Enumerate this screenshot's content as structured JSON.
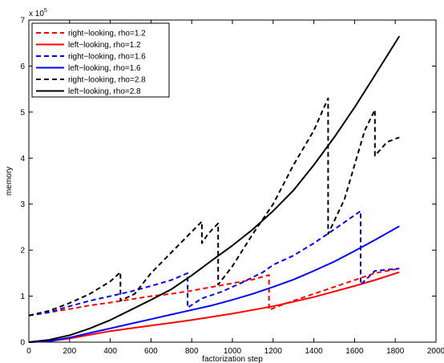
{
  "chart_data": {
    "type": "line",
    "title": "",
    "xlabel": "factorization step",
    "ylabel": "memory",
    "y_multiplier_label": "x 10",
    "y_multiplier_exponent": "5",
    "xlim": [
      0,
      2000
    ],
    "ylim": [
      0,
      7
    ],
    "xticks": [
      0,
      200,
      400,
      600,
      800,
      1000,
      1200,
      1400,
      1600,
      1800,
      2000
    ],
    "yticks": [
      0,
      1,
      2,
      3,
      4,
      5,
      6,
      7
    ],
    "grid": false,
    "legend_position": "top-left",
    "series": [
      {
        "name": "right−looking, rho=1.2",
        "color": "#ff0000",
        "style": "dashed",
        "x": [
          0,
          100,
          200,
          300,
          400,
          500,
          600,
          700,
          800,
          900,
          1000,
          1100,
          1180,
          1180,
          1250,
          1300,
          1400,
          1500,
          1600,
          1700,
          1820
        ],
        "y": [
          0.58,
          0.65,
          0.72,
          0.8,
          0.86,
          0.93,
          1.0,
          1.05,
          1.12,
          1.2,
          1.28,
          1.36,
          1.46,
          0.7,
          0.82,
          0.9,
          1.05,
          1.2,
          1.35,
          1.5,
          1.6
        ]
      },
      {
        "name": "left−looking, rho=1.2",
        "color": "#ff0000",
        "style": "solid",
        "x": [
          0,
          100,
          200,
          300,
          400,
          500,
          600,
          700,
          800,
          900,
          1000,
          1100,
          1200,
          1300,
          1400,
          1500,
          1600,
          1700,
          1820
        ],
        "y": [
          0.0,
          0.02,
          0.08,
          0.16,
          0.24,
          0.3,
          0.36,
          0.42,
          0.48,
          0.55,
          0.62,
          0.7,
          0.78,
          0.88,
          0.98,
          1.1,
          1.22,
          1.35,
          1.52
        ]
      },
      {
        "name": "right−looking, rho=1.6",
        "color": "#0000ff",
        "style": "dashed",
        "x": [
          0,
          100,
          200,
          300,
          400,
          500,
          600,
          700,
          780,
          780,
          850,
          950,
          1050,
          1150,
          1200,
          1300,
          1400,
          1500,
          1630,
          1630,
          1700,
          1820
        ],
        "y": [
          0.58,
          0.65,
          0.78,
          0.9,
          1.0,
          1.1,
          1.22,
          1.35,
          1.5,
          0.75,
          0.95,
          1.1,
          1.3,
          1.52,
          1.68,
          1.88,
          2.15,
          2.45,
          2.85,
          1.25,
          1.55,
          1.6
        ]
      },
      {
        "name": "left−looking, rho=1.6",
        "color": "#0000ff",
        "style": "solid",
        "x": [
          0,
          100,
          200,
          300,
          400,
          500,
          600,
          700,
          800,
          900,
          1000,
          1100,
          1200,
          1300,
          1400,
          1500,
          1600,
          1700,
          1820
        ],
        "y": [
          0.0,
          0.02,
          0.1,
          0.2,
          0.3,
          0.4,
          0.5,
          0.6,
          0.7,
          0.8,
          0.92,
          1.05,
          1.2,
          1.36,
          1.55,
          1.75,
          1.98,
          2.22,
          2.52
        ]
      },
      {
        "name": "right−looking, rho=2.8",
        "color": "#000000",
        "style": "dashed",
        "x": [
          0,
          100,
          200,
          300,
          400,
          450,
          450,
          520,
          600,
          700,
          800,
          850,
          850,
          880,
          930,
          930,
          1000,
          1100,
          1200,
          1300,
          1400,
          1470,
          1470,
          1550,
          1650,
          1700,
          1700,
          1760,
          1820
        ],
        "y": [
          0.58,
          0.68,
          0.85,
          1.05,
          1.32,
          1.52,
          0.9,
          1.05,
          1.5,
          1.95,
          2.4,
          2.62,
          2.15,
          2.35,
          2.58,
          1.25,
          1.65,
          2.35,
          3.0,
          3.85,
          4.6,
          5.3,
          2.35,
          3.1,
          4.6,
          5.05,
          4.05,
          4.35,
          4.45
        ]
      },
      {
        "name": "left−looking, rho=2.8",
        "color": "#000000",
        "style": "solid",
        "x": [
          0,
          100,
          200,
          300,
          400,
          500,
          600,
          700,
          800,
          900,
          1000,
          1100,
          1200,
          1300,
          1400,
          1500,
          1600,
          1700,
          1820
        ],
        "y": [
          0.0,
          0.05,
          0.15,
          0.3,
          0.48,
          0.7,
          0.92,
          1.15,
          1.45,
          1.78,
          2.1,
          2.45,
          2.85,
          3.3,
          3.85,
          4.45,
          5.1,
          5.8,
          6.65
        ]
      }
    ]
  }
}
